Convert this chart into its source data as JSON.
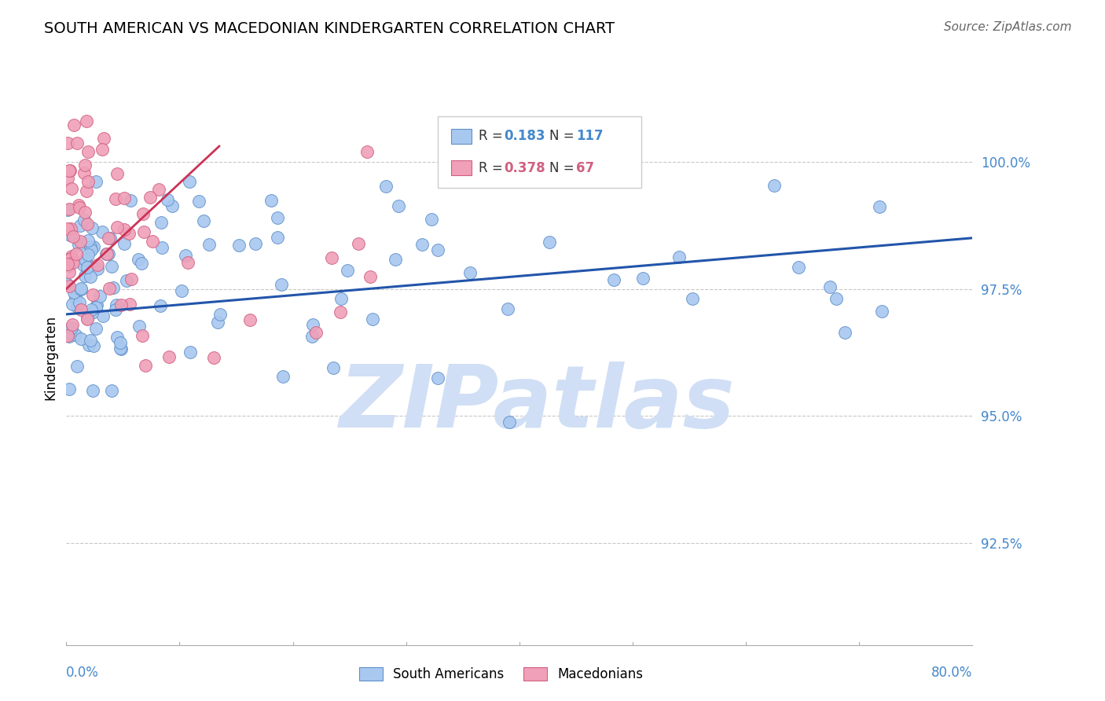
{
  "title": "SOUTH AMERICAN VS MACEDONIAN KINDERGARTEN CORRELATION CHART",
  "source": "Source: ZipAtlas.com",
  "ylabel": "Kindergarten",
  "ytick_labels": [
    "100.0%",
    "97.5%",
    "95.0%",
    "92.5%"
  ],
  "ytick_values": [
    1.0,
    0.975,
    0.95,
    0.925
  ],
  "xlim": [
    0.0,
    0.8
  ],
  "ylim": [
    0.905,
    1.018
  ],
  "blue_color": "#A8C8F0",
  "blue_edge_color": "#6090C8",
  "pink_color": "#F0A0B8",
  "pink_edge_color": "#D06080",
  "trendline_blue_color": "#2255AA",
  "trendline_pink_color": "#CC3355",
  "watermark_color": "#D0DFF5",
  "ytick_color": "#4488CC",
  "xtick_color": "#4488CC"
}
